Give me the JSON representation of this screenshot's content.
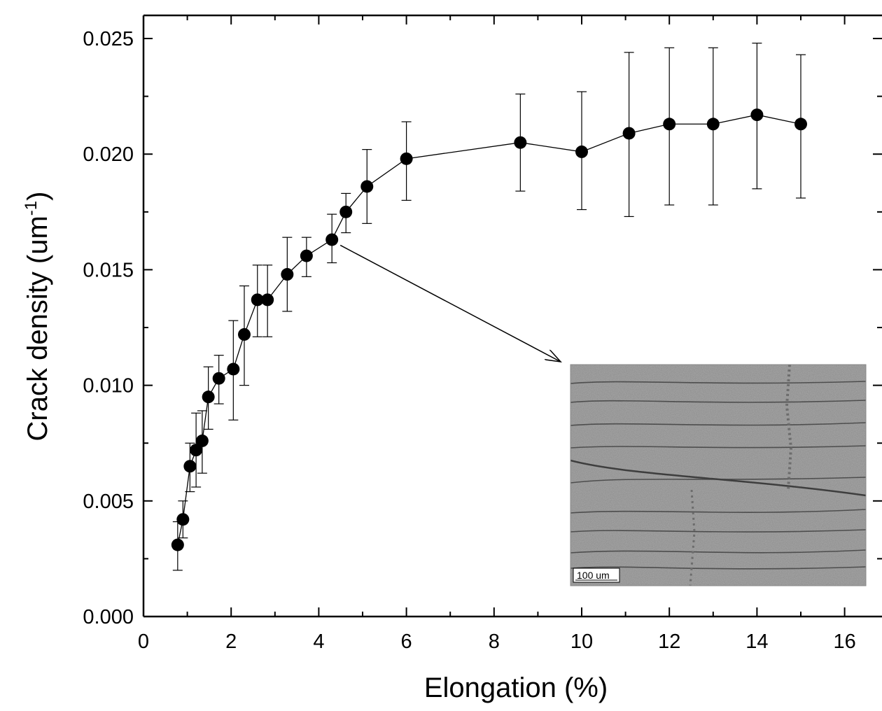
{
  "chart_data": {
    "type": "scatter",
    "xlabel": "Elongation (%)",
    "ylabel": {
      "base": "Crack density (um",
      "sup": "-1",
      "tail": ")"
    },
    "xlim": [
      0,
      17
    ],
    "ylim": [
      0.0,
      0.026
    ],
    "x_ticks": [
      "0",
      "2",
      "4",
      "6",
      "8",
      "10",
      "12",
      "14",
      "16"
    ],
    "y_ticks": [
      "0.000",
      "0.005",
      "0.010",
      "0.015",
      "0.020",
      "0.025"
    ],
    "grid": false,
    "legend": "none",
    "series": [
      {
        "marker": "filled-circle",
        "connected": true,
        "color": "#000000",
        "x": [
          0.78,
          0.9,
          1.06,
          1.2,
          1.34,
          1.48,
          1.72,
          2.05,
          2.3,
          2.6,
          2.83,
          3.28,
          3.72,
          4.3,
          4.62,
          5.1,
          6.0,
          8.6,
          10.0,
          11.08,
          12.0,
          13.0,
          14.0,
          15.0
        ],
        "y": [
          0.0031,
          0.0042,
          0.0065,
          0.0072,
          0.0076,
          0.0095,
          0.0103,
          0.0107,
          0.0122,
          0.0137,
          0.0137,
          0.0148,
          0.0156,
          0.0163,
          0.0175,
          0.0186,
          0.0198,
          0.0205,
          0.0201,
          0.0209,
          0.0213,
          0.0213,
          0.0217,
          0.0213
        ],
        "err_low": [
          0.002,
          0.0034,
          0.0054,
          0.0056,
          0.0062,
          0.0081,
          0.0092,
          0.0085,
          0.01,
          0.0121,
          0.0121,
          0.0132,
          0.0147,
          0.0153,
          0.0166,
          0.017,
          0.018,
          0.0184,
          0.0176,
          0.0173,
          0.0178,
          0.0178,
          0.0185,
          0.0181
        ],
        "err_high": [
          0.0041,
          0.005,
          0.0075,
          0.0088,
          0.0089,
          0.0108,
          0.0113,
          0.0128,
          0.0143,
          0.0152,
          0.0152,
          0.0164,
          0.0164,
          0.0174,
          0.0183,
          0.0202,
          0.0214,
          0.0226,
          0.0227,
          0.0244,
          0.0246,
          0.0246,
          0.0248,
          0.0243
        ]
      }
    ],
    "annotation": {
      "type": "arrow",
      "from_point_index": 13,
      "points_to": "inset-micrograph"
    },
    "inset": {
      "kind": "optical-micrograph",
      "scale_bar_label": "100 um",
      "background_color": "#a9a9a9"
    }
  }
}
